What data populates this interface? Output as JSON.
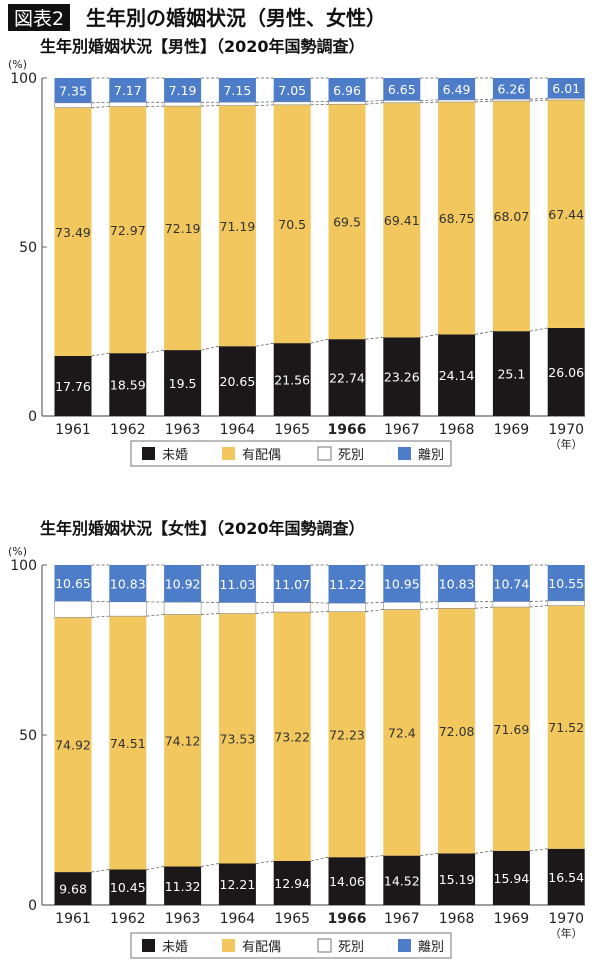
{
  "figure_label": "図表2",
  "title": "生年別の婚姻状況（男性、女性）",
  "year_unit": "（年）",
  "colors": {
    "unmarried": "#1c1819",
    "married": "#f2c85e",
    "widowed": "#ffffff",
    "divorced": "#4d7cc9"
  },
  "chart_data": [
    {
      "type": "bar",
      "stacked": true,
      "title": "生年別婚姻状況【男性】（2020年国勢調査）",
      "ylabel": "(%)",
      "ylim": [
        0,
        100
      ],
      "yticks": [
        "0",
        "50",
        "100"
      ],
      "categories": [
        "1961",
        "1962",
        "1963",
        "1964",
        "1965",
        "1966",
        "1967",
        "1968",
        "1969",
        "1970"
      ],
      "highlight_category": "1966",
      "legend": [
        "未婚",
        "有配偶",
        "死別",
        "離別"
      ],
      "legend_position": "bottom",
      "series": [
        {
          "name": "未婚",
          "values": [
            17.76,
            18.59,
            19.5,
            20.65,
            21.56,
            22.74,
            23.26,
            24.14,
            25.1,
            26.06
          ]
        },
        {
          "name": "有配偶",
          "values": [
            73.49,
            72.97,
            72.19,
            71.19,
            70.5,
            69.5,
            69.41,
            68.75,
            68.07,
            67.44
          ]
        },
        {
          "name": "死別",
          "values": null
        },
        {
          "name": "離別",
          "values": [
            7.35,
            7.17,
            7.19,
            7.15,
            7.05,
            6.96,
            6.65,
            6.49,
            6.26,
            6.01
          ]
        }
      ]
    },
    {
      "type": "bar",
      "stacked": true,
      "title": "生年別婚姻状況【女性】（2020年国勢調査）",
      "ylabel": "(%)",
      "ylim": [
        0,
        100
      ],
      "yticks": [
        "0",
        "50",
        "100"
      ],
      "categories": [
        "1961",
        "1962",
        "1963",
        "1964",
        "1965",
        "1966",
        "1967",
        "1968",
        "1969",
        "1970"
      ],
      "highlight_category": "1966",
      "legend": [
        "未婚",
        "有配偶",
        "死別",
        "離別"
      ],
      "legend_position": "bottom",
      "series": [
        {
          "name": "未婚",
          "values": [
            9.68,
            10.45,
            11.32,
            12.21,
            12.94,
            14.06,
            14.52,
            15.19,
            15.94,
            16.54
          ]
        },
        {
          "name": "有配偶",
          "values": [
            74.92,
            74.51,
            74.12,
            73.53,
            73.22,
            72.23,
            72.4,
            72.08,
            71.69,
            71.52
          ]
        },
        {
          "name": "死別",
          "values": null
        },
        {
          "name": "離別",
          "values": [
            10.65,
            10.83,
            10.92,
            11.03,
            11.07,
            11.22,
            10.95,
            10.83,
            10.74,
            10.55
          ]
        }
      ]
    }
  ]
}
